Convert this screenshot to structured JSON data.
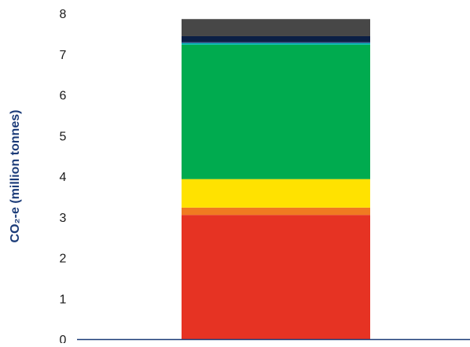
{
  "chart_data": {
    "type": "bar",
    "stacked": true,
    "title": "",
    "xlabel": "",
    "ylabel": "CO₂-e (million tonnes)",
    "ylim": [
      0,
      8
    ],
    "yticks": [
      "0",
      "1",
      "2",
      "3",
      "4",
      "5",
      "6",
      "7",
      "8"
    ],
    "grid": false,
    "legend": "none",
    "categories": [
      ""
    ],
    "segments": [
      {
        "value": 3.05,
        "color": "#e63323"
      },
      {
        "value": 0.18,
        "color": "#f07a21"
      },
      {
        "value": 0.7,
        "color": "#ffe200"
      },
      {
        "value": 3.3,
        "color": "#00ab4f"
      },
      {
        "value": 0.04,
        "color": "#00b5ad"
      },
      {
        "value": 0.02,
        "color": "#1d4f91"
      },
      {
        "value": 0.15,
        "color": "#0b1f45"
      },
      {
        "value": 0.42,
        "color": "#474747"
      }
    ],
    "axis_color": "#1b3b78",
    "label_color": "#1b3b78",
    "tick_label_color": "#1a1a1a"
  }
}
